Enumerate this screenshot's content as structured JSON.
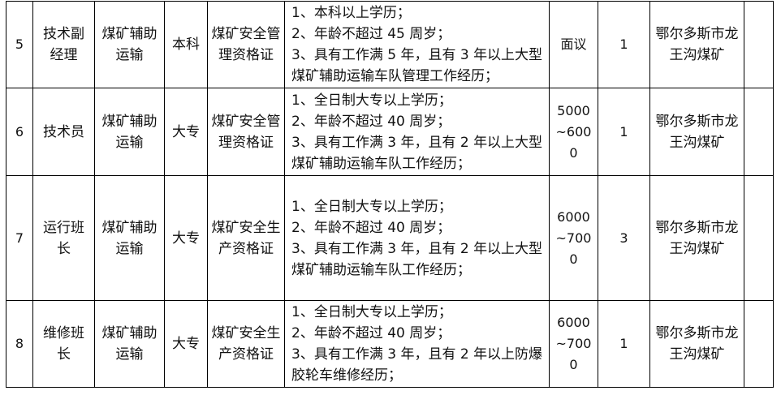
{
  "rows": [
    {
      "no": "5",
      "position": "技术副经理",
      "major": "煤矿辅助运输",
      "degree": "本科",
      "certificate": "煤矿安全管理资格证",
      "requirements": [
        "1、本科以上学历；",
        "2、年龄不超过 45 周岁；",
        "3、具有工作满 5 年，且有 3 年以上大型煤矿辅助运输车队管理工作经历；"
      ],
      "salary": "面议",
      "count": "1",
      "location": "鄂尔多斯市龙王沟煤矿",
      "remark": ""
    },
    {
      "no": "6",
      "position": "技术员",
      "major": "煤矿辅助运输",
      "degree": "大专",
      "certificate": "煤矿安全管理资格证",
      "requirements": [
        "1、全日制大专以上学历；",
        "2、年龄不超过 40 周岁；",
        "3、具有工作满 3 年，且有 2 年以上大型煤矿辅助运输车队工作经历；"
      ],
      "salary": "5000~6000",
      "count": "1",
      "location": "鄂尔多斯市龙王沟煤矿",
      "remark": ""
    },
    {
      "no": "7",
      "position": "运行班长",
      "major": "煤矿辅助运输",
      "degree": "大专",
      "certificate": "煤矿安全生产资格证",
      "requirements": [
        "1、全日制大专以上学历；",
        "2、年龄不超过 40 周岁；",
        "3、具有工作满 3 年，且有 2 年以上大型煤矿辅助运输车队工作经历；"
      ],
      "salary": "6000~7000",
      "count": "3",
      "location": "鄂尔多斯市龙王沟煤矿",
      "remark": ""
    },
    {
      "no": "8",
      "position": "维修班长",
      "major": "煤矿辅助运输",
      "degree": "大专",
      "certificate": "煤矿安全生产资格证",
      "requirements": [
        "1、全日制大专以上学历；",
        "2、年龄不超过 40 周岁；",
        "3、具有工作满 3 年，且有 2 年以上防爆胶轮车维修经历；"
      ],
      "salary": "6000~7000",
      "count": "1",
      "location": "鄂尔多斯市龙王沟煤矿",
      "remark": ""
    }
  ]
}
